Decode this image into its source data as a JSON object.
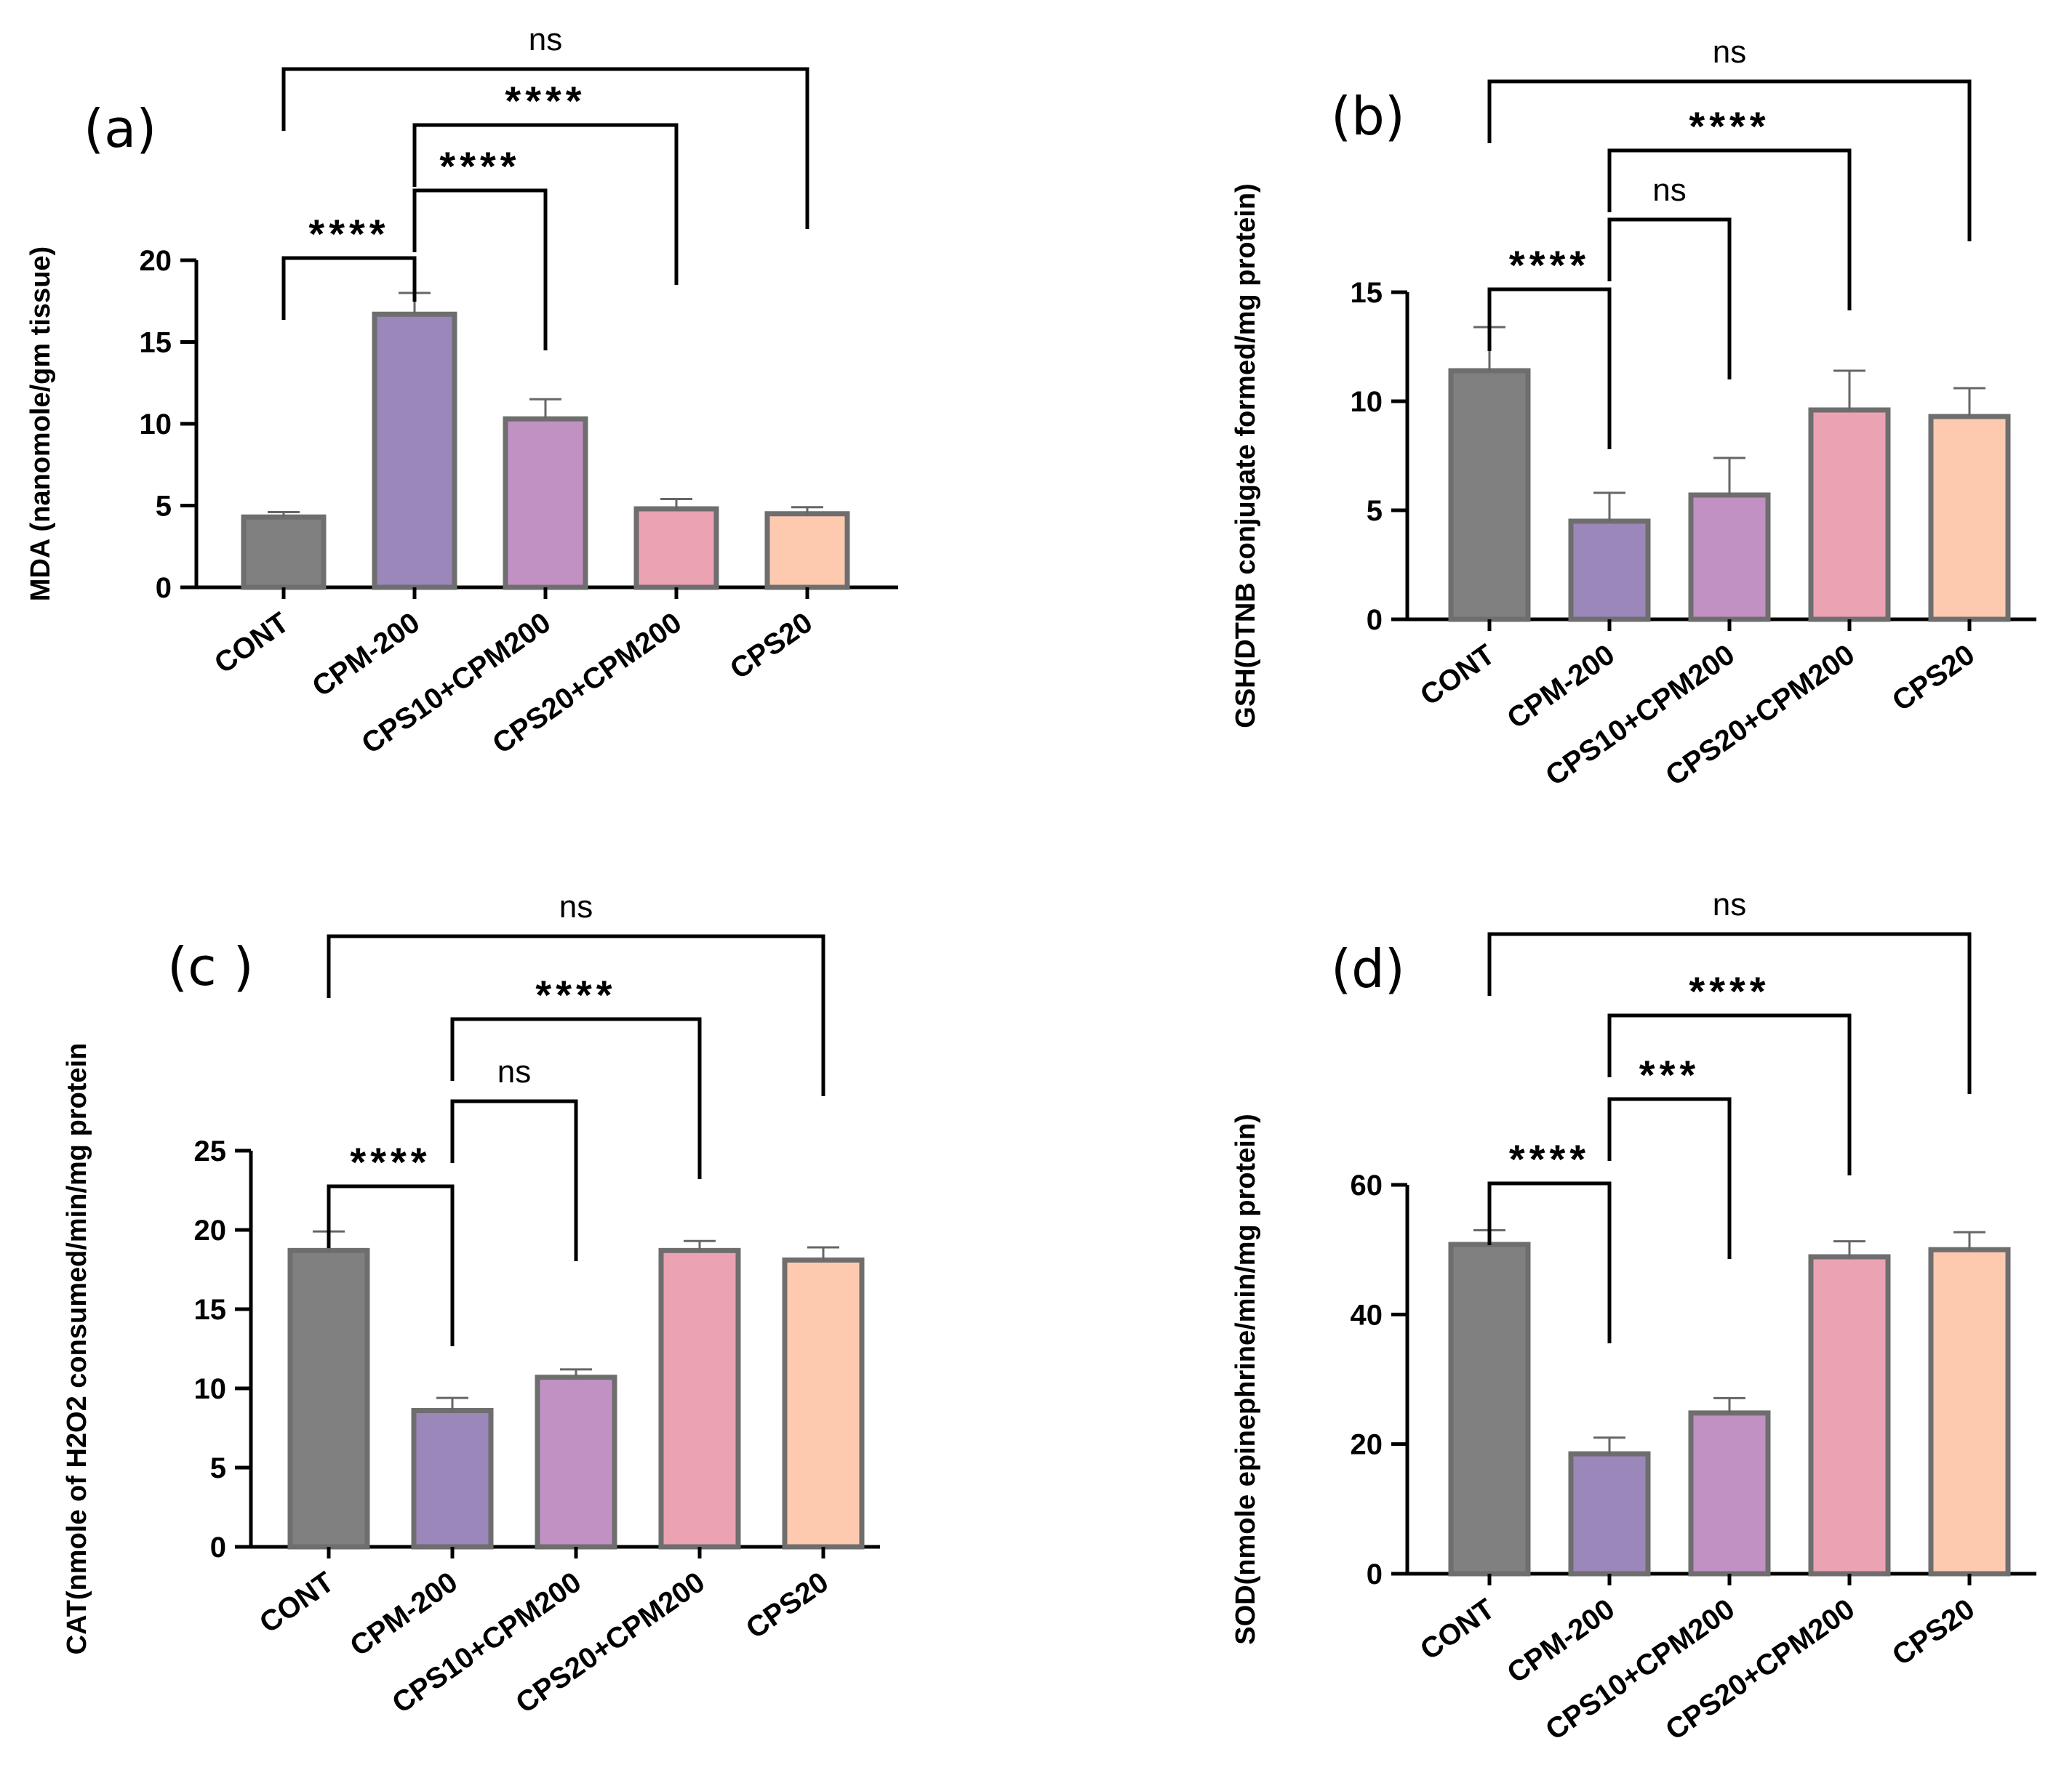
{
  "figure": {
    "colors": {
      "CONT": "#808080",
      "CPM-200": "#9b87b9",
      "CPS10+CPM200": "#c291c3",
      "CPS20+CPM200": "#eba2b3",
      "CPS20": "#fdcab0",
      "bar_edge": "#6e6e6e",
      "axis": "#000000"
    }
  },
  "chart_data": [
    {
      "id": "a",
      "type": "bar",
      "panel_label": "(a)",
      "ylabel": "MDA (nanomole/gm tissue)",
      "categories": [
        "CONT",
        "CPM-200",
        "CPS10+CPM200",
        "CPS20+CPM200",
        "CPS20"
      ],
      "values": [
        4.3,
        16.7,
        10.3,
        4.8,
        4.5
      ],
      "errors": [
        0.3,
        1.3,
        1.2,
        0.6,
        0.4
      ],
      "ylim": [
        0,
        20
      ],
      "yticks": [
        0,
        5,
        10,
        15,
        20
      ],
      "comparisons": [
        {
          "from": 0,
          "to": 1,
          "label": "****"
        },
        {
          "from": 1,
          "to": 2,
          "label": "****"
        },
        {
          "from": 1,
          "to": 3,
          "label": "****"
        },
        {
          "from": 0,
          "to": 4,
          "label": "ns"
        }
      ]
    },
    {
      "id": "b",
      "type": "bar",
      "panel_label": "(b)",
      "ylabel": "GSH(DTNB conjugate formed/mg protein)",
      "categories": [
        "CONT",
        "CPM-200",
        "CPS10+CPM200",
        "CPS20+CPM200",
        "CPS20"
      ],
      "values": [
        11.4,
        4.5,
        5.7,
        9.6,
        9.3
      ],
      "errors": [
        2.0,
        1.3,
        1.7,
        1.8,
        1.3
      ],
      "ylim": [
        0,
        15
      ],
      "yticks": [
        0,
        5,
        10,
        15
      ],
      "comparisons": [
        {
          "from": 0,
          "to": 1,
          "label": "****"
        },
        {
          "from": 1,
          "to": 2,
          "label": "ns"
        },
        {
          "from": 1,
          "to": 3,
          "label": "****"
        },
        {
          "from": 0,
          "to": 4,
          "label": "ns"
        }
      ]
    },
    {
      "id": "c",
      "type": "bar",
      "panel_label": "(c )",
      "ylabel": "CAT(nmole of H2O2 consumed/min/mg protein",
      "categories": [
        "CONT",
        "CPM-200",
        "CPS10+CPM200",
        "CPS20+CPM200",
        "CPS20"
      ],
      "values": [
        18.7,
        8.6,
        10.7,
        18.7,
        18.1
      ],
      "errors": [
        1.2,
        0.8,
        0.5,
        0.6,
        0.8
      ],
      "ylim": [
        0,
        25
      ],
      "yticks": [
        0,
        5,
        10,
        15,
        20,
        25
      ],
      "comparisons": [
        {
          "from": 0,
          "to": 1,
          "label": "****"
        },
        {
          "from": 1,
          "to": 2,
          "label": "ns"
        },
        {
          "from": 1,
          "to": 3,
          "label": "****"
        },
        {
          "from": 0,
          "to": 4,
          "label": "ns"
        }
      ]
    },
    {
      "id": "d",
      "type": "bar",
      "panel_label": "(d)",
      "ylabel": "SOD(nmole epinephrine/min/mg protein)",
      "categories": [
        "CONT",
        "CPM-200",
        "CPS10+CPM200",
        "CPS20+CPM200",
        "CPS20"
      ],
      "values": [
        50.8,
        18.5,
        24.8,
        48.9,
        50.0
      ],
      "errors": [
        2.2,
        2.5,
        2.3,
        2.4,
        2.7
      ],
      "ylim": [
        0,
        60
      ],
      "yticks": [
        0,
        20,
        40,
        60
      ],
      "comparisons": [
        {
          "from": 0,
          "to": 1,
          "label": "****"
        },
        {
          "from": 1,
          "to": 2,
          "label": "***"
        },
        {
          "from": 1,
          "to": 3,
          "label": "****"
        },
        {
          "from": 0,
          "to": 4,
          "label": "ns"
        }
      ]
    }
  ]
}
